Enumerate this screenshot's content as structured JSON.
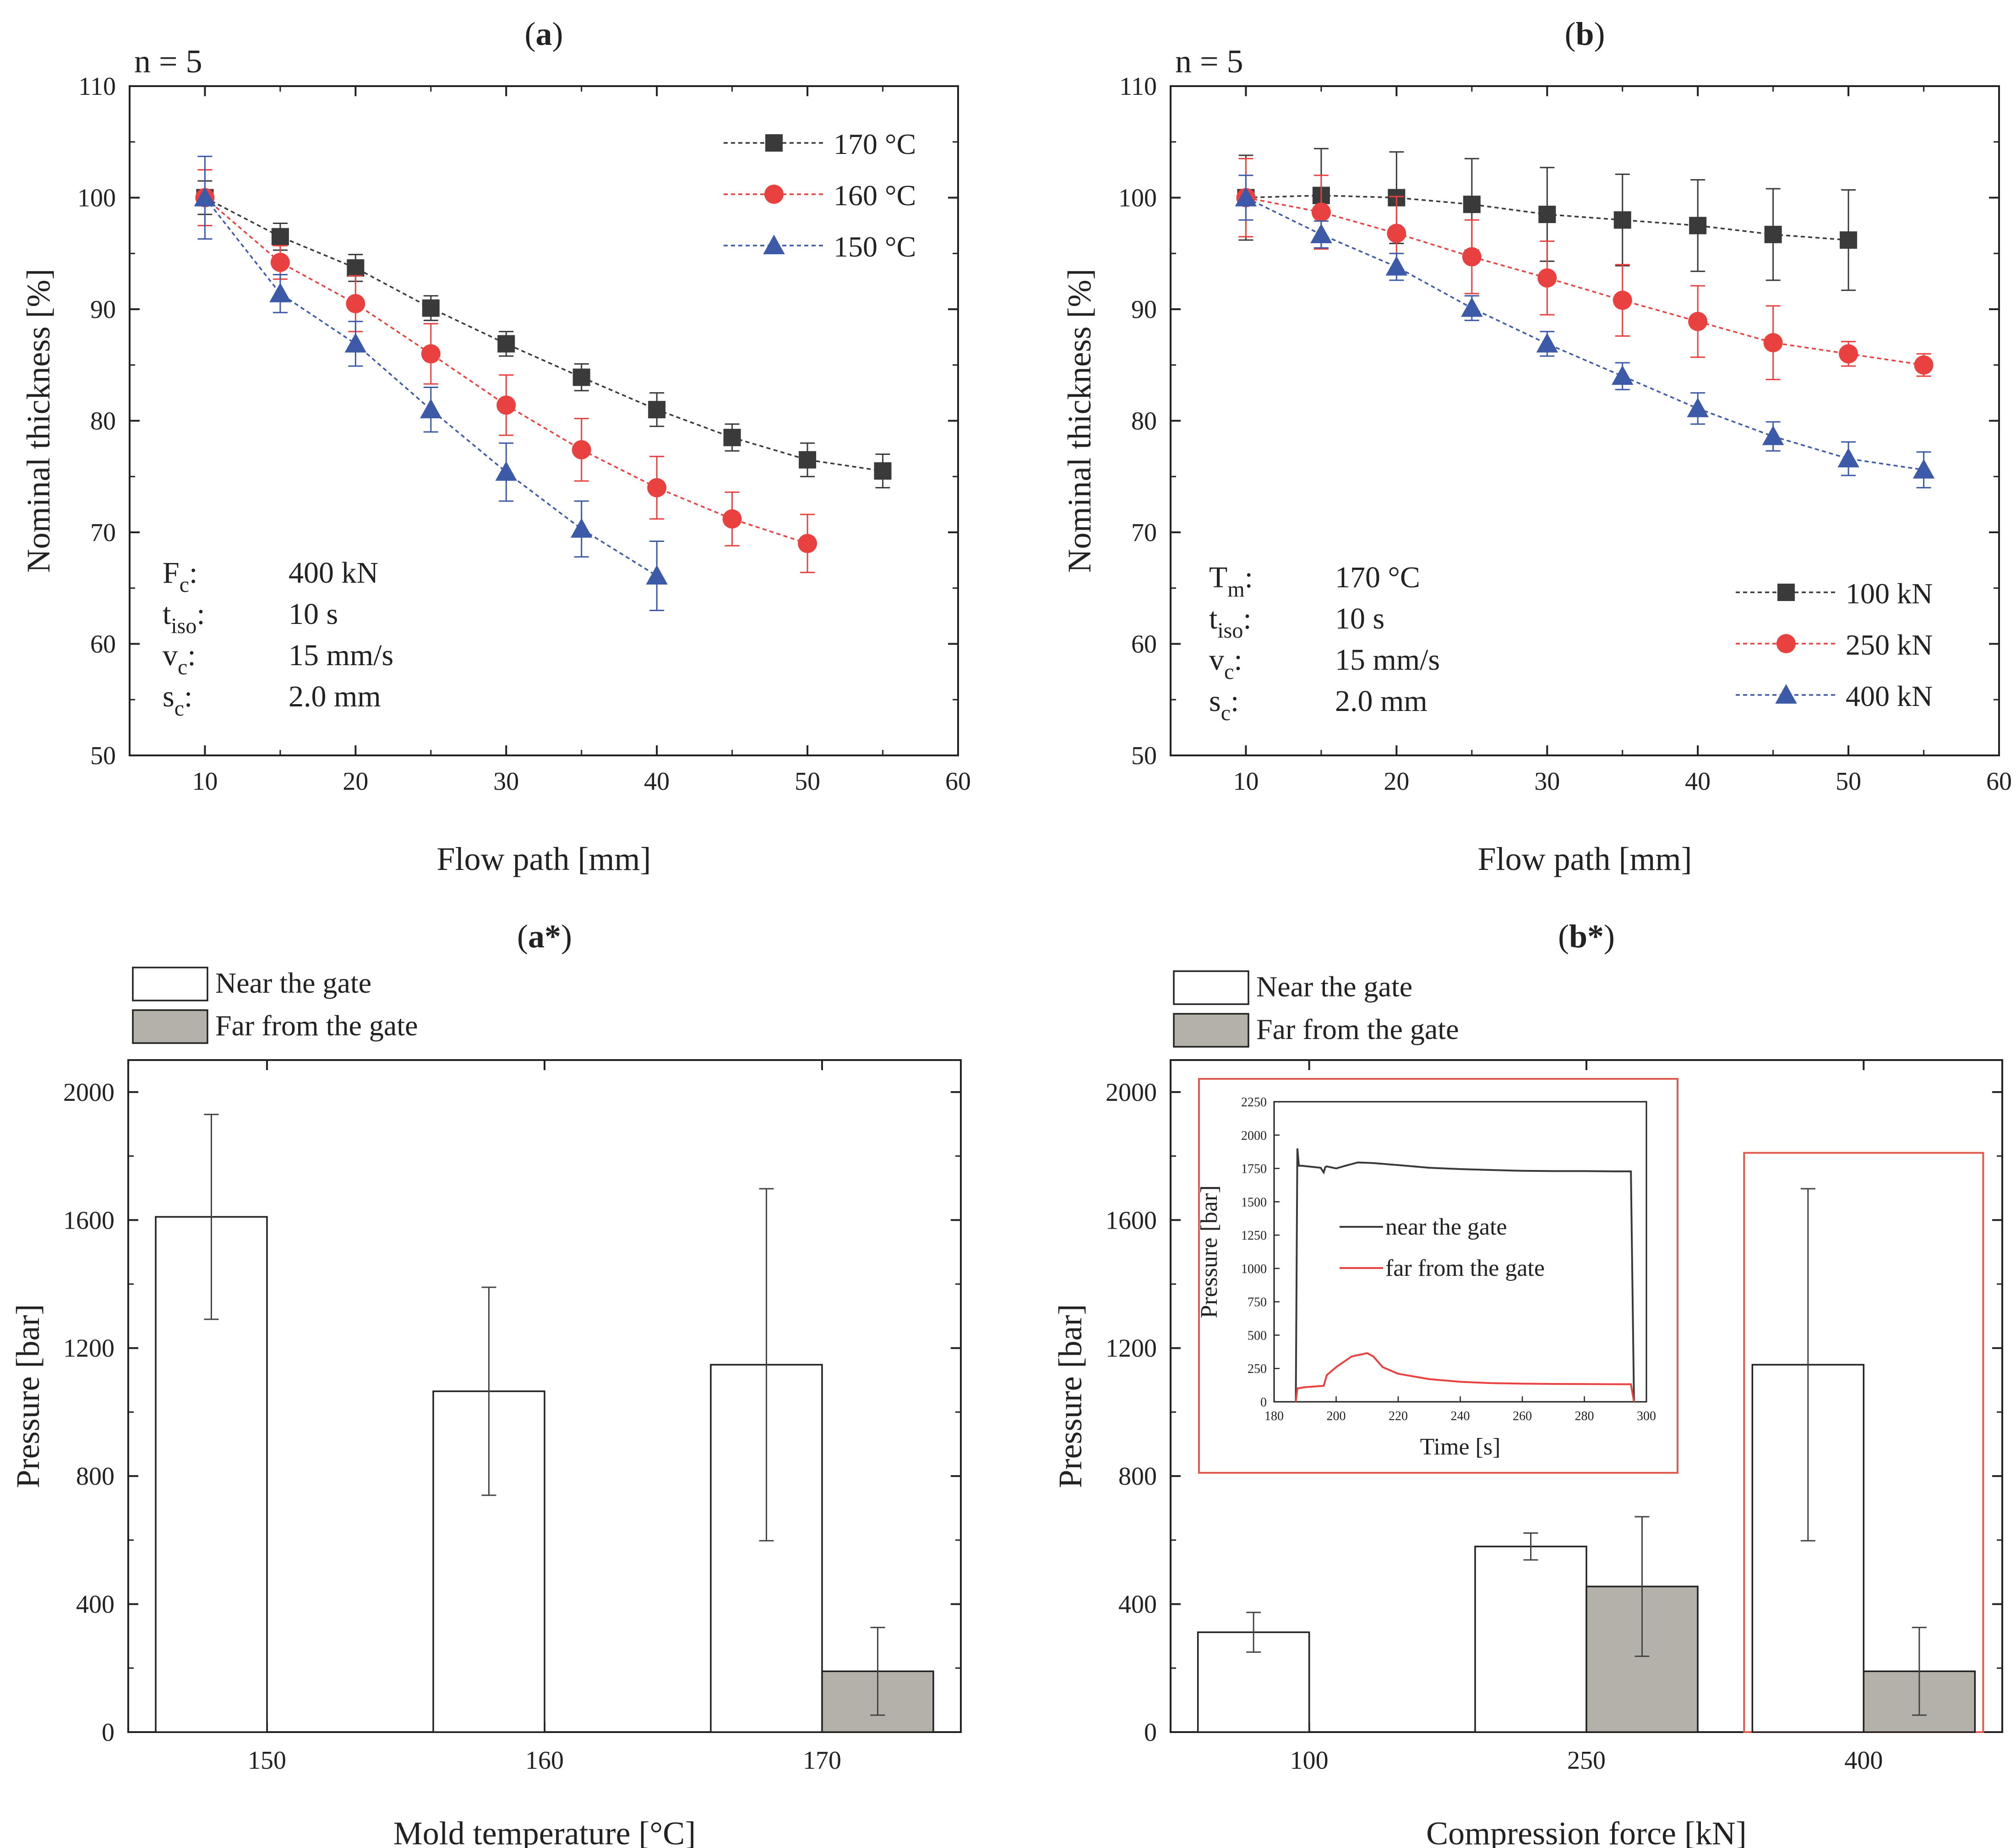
{
  "colors": {
    "black_series": "#3a3a3a",
    "red_series": "#e8413f",
    "blue_series": "#3c5aa8",
    "far_fill": "#b4b0aa",
    "highlight": "#e05a50"
  },
  "chart_data": [
    {
      "id": "a",
      "type": "line",
      "panel_label": "a",
      "n_label": "n = 5",
      "xlabel": "Flow path [mm]",
      "ylabel": "Nominal thickness [%]",
      "xlim": [
        5,
        60
      ],
      "ylim": [
        50,
        110
      ],
      "xticks": [
        10,
        20,
        30,
        40,
        50,
        60
      ],
      "yticks": [
        50,
        60,
        70,
        80,
        90,
        100,
        110
      ],
      "legend_position": "top-right",
      "params": [
        {
          "sym": "F",
          "sub": "c",
          "value": "400 kN"
        },
        {
          "sym": "t",
          "sub": "iso",
          "value": "10 s"
        },
        {
          "sym": "v",
          "sub": "c",
          "value": "15 mm/s"
        },
        {
          "sym": "s",
          "sub": "c",
          "value": "2.0 mm"
        }
      ],
      "series": [
        {
          "name": "170 °C",
          "marker": "square",
          "color": "#3a3a3a",
          "x": [
            10,
            15,
            20,
            25,
            30,
            35,
            40,
            45,
            50,
            55
          ],
          "y": [
            100,
            96.5,
            93.7,
            90.1,
            86.9,
            83.9,
            81,
            78.5,
            76.5,
            75.5
          ],
          "err": [
            1.5,
            1.2,
            1.2,
            1.1,
            1.1,
            1.2,
            1.5,
            1.2,
            1.5,
            1.5
          ]
        },
        {
          "name": "160 °C",
          "marker": "circle",
          "color": "#e8413f",
          "x": [
            10,
            15,
            20,
            25,
            30,
            35,
            40,
            45,
            50
          ],
          "y": [
            100,
            94.2,
            90.5,
            86,
            81.4,
            77.4,
            74,
            71.2,
            69
          ],
          "err": [
            2.5,
            1.5,
            2.5,
            2.7,
            2.7,
            2.8,
            2.8,
            2.4,
            2.6
          ]
        },
        {
          "name": "150 °C",
          "marker": "triangle",
          "color": "#3c5aa8",
          "x": [
            10,
            15,
            20,
            25,
            30,
            35,
            40
          ],
          "y": [
            100,
            91.4,
            86.9,
            81,
            75.4,
            70.3,
            66.1
          ],
          "err": [
            3.7,
            1.7,
            2.0,
            2.0,
            2.6,
            2.5,
            3.1
          ]
        }
      ]
    },
    {
      "id": "b",
      "type": "line",
      "panel_label": "b",
      "n_label": "n = 5",
      "xlabel": "Flow path [mm]",
      "ylabel": "Nominal thickness [%]",
      "xlim": [
        5,
        60
      ],
      "ylim": [
        50,
        110
      ],
      "xticks": [
        10,
        20,
        30,
        40,
        50,
        60
      ],
      "yticks": [
        50,
        60,
        70,
        80,
        90,
        100,
        110
      ],
      "legend_position": "bottom-right",
      "params": [
        {
          "sym": "T",
          "sub": "m",
          "value": "170 °C"
        },
        {
          "sym": "t",
          "sub": "iso",
          "value": "10 s"
        },
        {
          "sym": "v",
          "sub": "c",
          "value": "15 mm/s"
        },
        {
          "sym": "s",
          "sub": "c",
          "value": "2.0 mm"
        }
      ],
      "series": [
        {
          "name": "100 kN",
          "marker": "square",
          "color": "#3a3a3a",
          "x": [
            10,
            15,
            20,
            25,
            30,
            35,
            40,
            45,
            50
          ],
          "y": [
            100,
            100.2,
            100,
            99.4,
            98.5,
            98,
            97.5,
            96.7,
            96.2
          ],
          "err": [
            3.8,
            4.2,
            4.1,
            4.1,
            4.2,
            4.1,
            4.1,
            4.1,
            4.5
          ]
        },
        {
          "name": "250 kN",
          "marker": "circle",
          "color": "#e8413f",
          "x": [
            10,
            15,
            20,
            25,
            30,
            35,
            40,
            45,
            50,
            55
          ],
          "y": [
            100,
            98.7,
            96.8,
            94.7,
            92.8,
            90.8,
            88.9,
            87,
            86,
            85
          ],
          "err": [
            3.5,
            3.3,
            3.3,
            3.3,
            3.3,
            3.2,
            3.2,
            3.3,
            1.1,
            1.0
          ]
        },
        {
          "name": "400 kN",
          "marker": "triangle",
          "color": "#3c5aa8",
          "x": [
            10,
            15,
            20,
            25,
            30,
            35,
            40,
            45,
            50,
            55
          ],
          "y": [
            100,
            96.7,
            93.8,
            90.1,
            86.9,
            84,
            81.1,
            78.6,
            76.6,
            75.6
          ],
          "err": [
            2.0,
            1.2,
            1.2,
            1.1,
            1.1,
            1.2,
            1.4,
            1.3,
            1.5,
            1.6
          ]
        }
      ]
    },
    {
      "id": "a_star",
      "type": "bar",
      "panel_label": "a*",
      "xlabel": "Mold temperature [°C]",
      "ylabel": "Pressure [bar]",
      "ylim": [
        0,
        2100
      ],
      "yticks": [
        0,
        400,
        800,
        1200,
        1600,
        2000
      ],
      "categories": [
        "150",
        "160",
        "170"
      ],
      "legend_position": "top-left",
      "series": [
        {
          "name": "Near the gate",
          "values": [
            1610,
            1065,
            1148
          ],
          "err": [
            320,
            325,
            550
          ]
        },
        {
          "name": "Far from the gate",
          "values": [
            0,
            0,
            190
          ],
          "err": [
            0,
            0,
            137
          ]
        }
      ]
    },
    {
      "id": "b_star",
      "type": "bar",
      "panel_label": "b*",
      "xlabel": "Compression force [kN]",
      "ylabel": "Pressure [bar]",
      "ylim": [
        0,
        2100
      ],
      "yticks": [
        0,
        400,
        800,
        1200,
        1600,
        2000
      ],
      "categories": [
        "100",
        "250",
        "400"
      ],
      "legend_position": "top-left",
      "highlight_category": "400",
      "series": [
        {
          "name": "Near the gate",
          "values": [
            312,
            580,
            1148
          ],
          "err": [
            62,
            42,
            550
          ]
        },
        {
          "name": "Far from the gate",
          "values": [
            0,
            455,
            190
          ],
          "err": [
            0,
            218,
            137
          ]
        }
      ],
      "inset": {
        "type": "line",
        "xlabel": "Time [s]",
        "ylabel": "Pressure [bar]",
        "xlim": [
          180,
          300
        ],
        "ylim": [
          0,
          2250
        ],
        "xticks": [
          180,
          200,
          220,
          240,
          260,
          280,
          300
        ],
        "yticks": [
          0,
          250,
          500,
          750,
          1000,
          1250,
          1500,
          1750,
          2000,
          2250
        ],
        "series": [
          {
            "name": "near the gate",
            "color": "#3a3a3a",
            "x": [
              187,
              187.5,
              188,
              189,
              195,
              196,
              196.5,
              197,
              200,
              203,
              207,
              212,
              220,
              230,
              240,
              250,
              260,
              270,
              280,
              290,
              295,
              296
            ],
            "y": [
              0,
              1900,
              1770,
              1770,
              1755,
              1720,
              1760,
              1765,
              1750,
              1770,
              1795,
              1790,
              1775,
              1755,
              1745,
              1738,
              1732,
              1730,
              1730,
              1728,
              1728,
              0
            ]
          },
          {
            "name": "far from the gate",
            "color": "#e8413f",
            "x": [
              187,
              187.5,
              190,
              195,
              196,
              197,
              200,
              205,
              210,
              212,
              215,
              220,
              230,
              240,
              250,
              260,
              270,
              280,
              290,
              295,
              296
            ],
            "y": [
              0,
              100,
              110,
              118,
              120,
              200,
              260,
              340,
              365,
              340,
              260,
              210,
              170,
              150,
              140,
              136,
              134,
              133,
              132,
              132,
              0
            ]
          }
        ]
      }
    }
  ]
}
